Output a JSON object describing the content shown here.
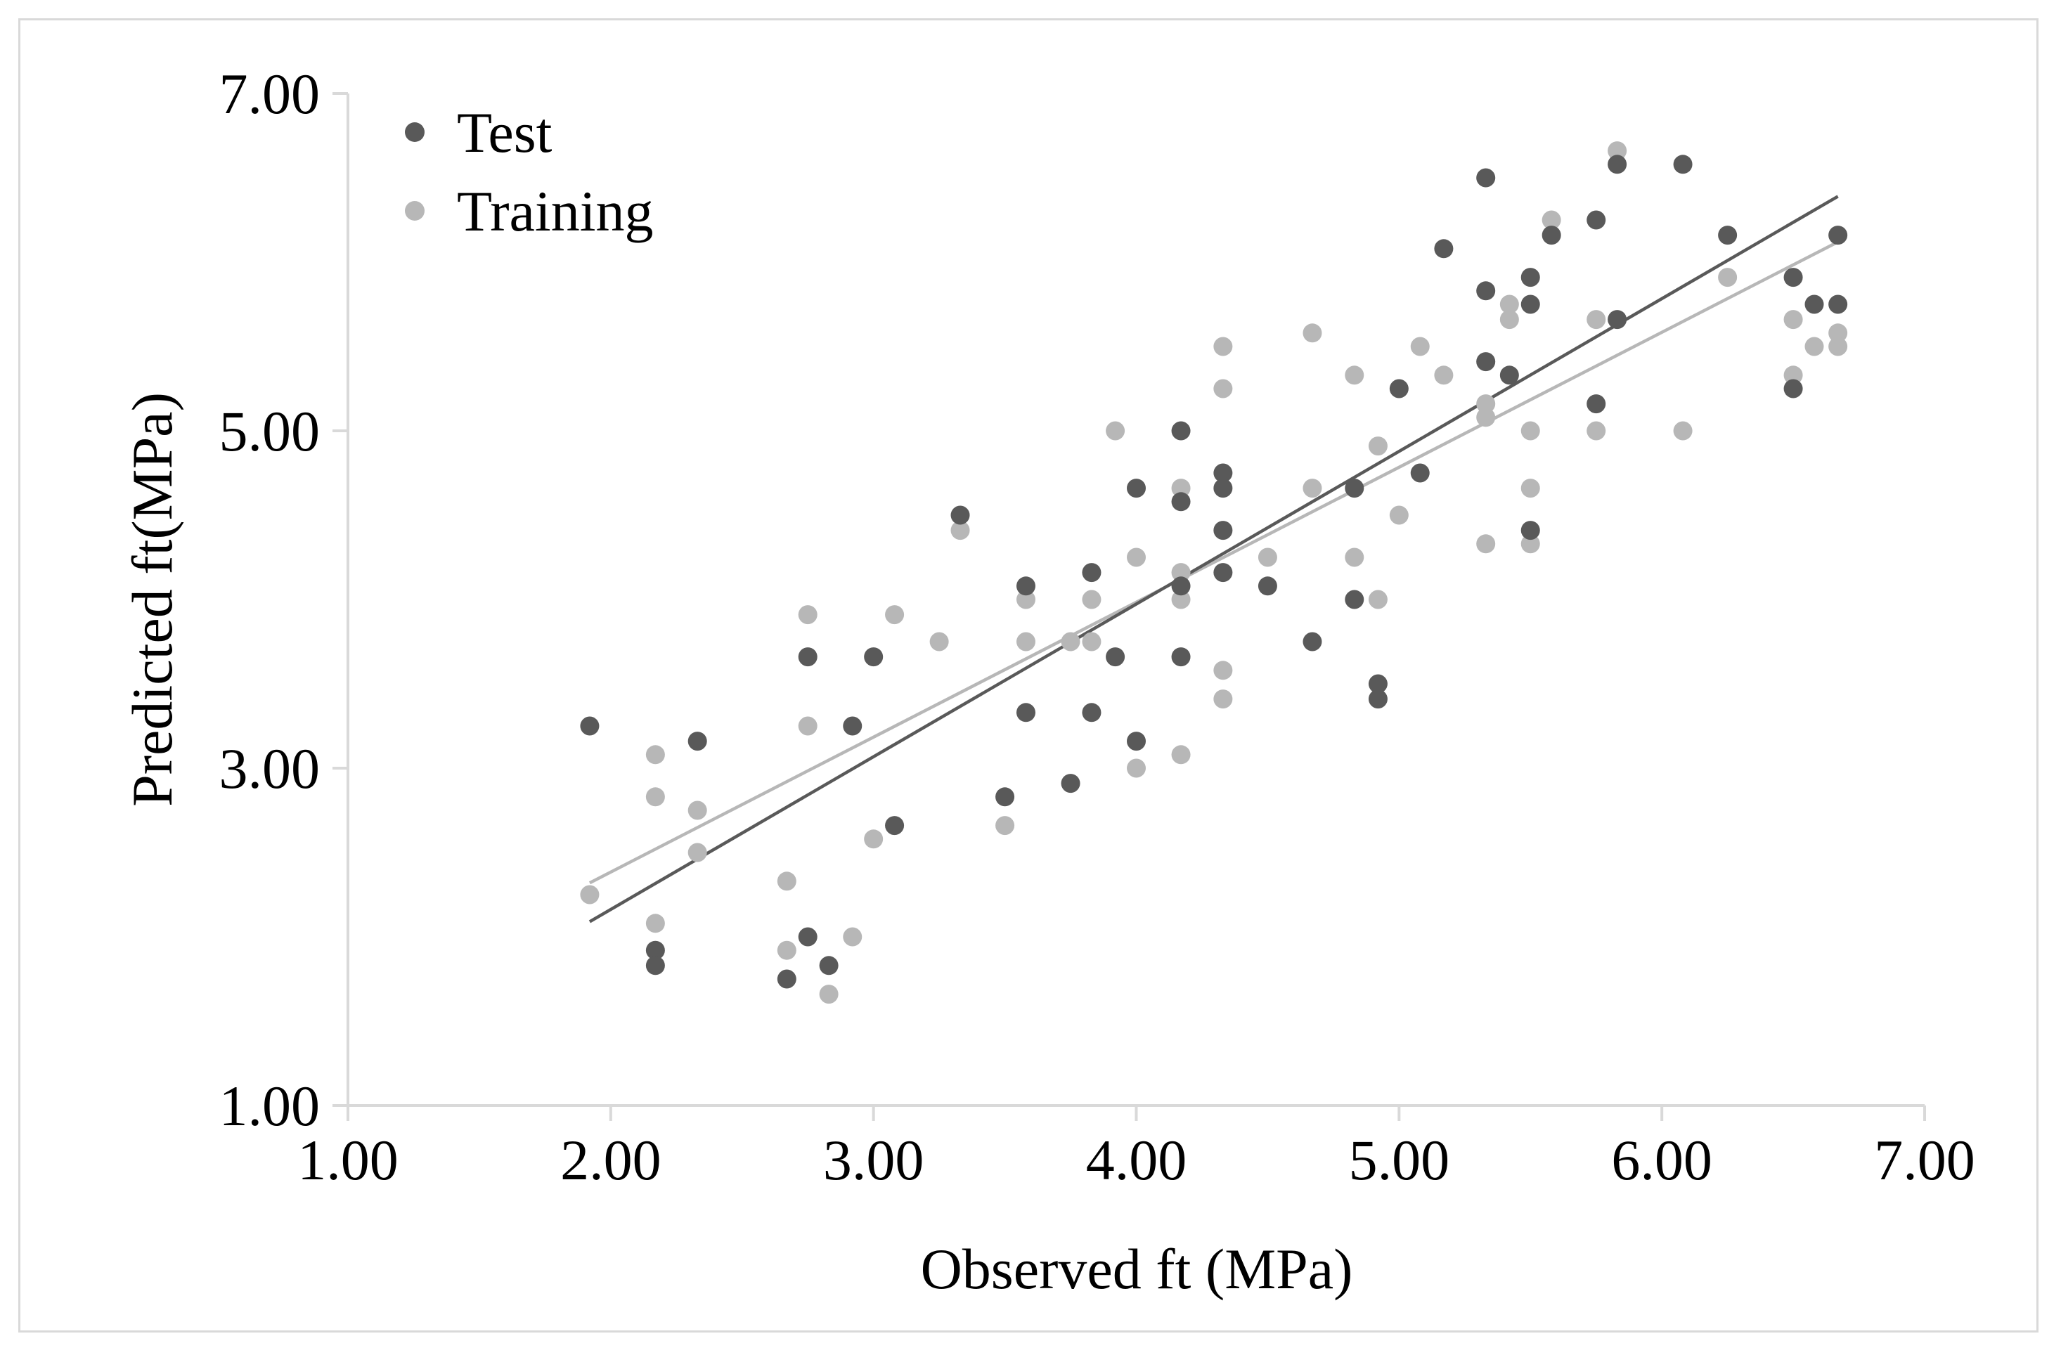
{
  "chart_data": {
    "type": "scatter",
    "title": "",
    "xlabel": "Observed ft (MPa)",
    "ylabel": "Predicted ft(MPa)",
    "xlim": [
      1.0,
      7.0
    ],
    "ylim": [
      1.0,
      7.0
    ],
    "x_ticks": [
      "1.00",
      "2.00",
      "3.00",
      "4.00",
      "5.00",
      "6.00",
      "7.00"
    ],
    "x_tick_values": [
      1,
      2,
      3,
      4,
      5,
      6,
      7
    ],
    "y_ticks": [
      "1.00",
      "3.00",
      "5.00",
      "7.00"
    ],
    "y_tick_values": [
      1,
      3,
      5,
      7
    ],
    "grid": false,
    "legend_position": "top-left",
    "series": [
      {
        "name": "Test",
        "color": "#595959",
        "points": [
          [
            1.92,
            3.25
          ],
          [
            2.17,
            1.92
          ],
          [
            2.17,
            1.83
          ],
          [
            2.33,
            3.16
          ],
          [
            2.67,
            1.75
          ],
          [
            2.75,
            2.0
          ],
          [
            2.75,
            3.66
          ],
          [
            2.83,
            1.83
          ],
          [
            2.92,
            3.25
          ],
          [
            3.0,
            3.66
          ],
          [
            3.08,
            2.66
          ],
          [
            3.33,
            4.5
          ],
          [
            3.5,
            2.83
          ],
          [
            3.58,
            4.08
          ],
          [
            3.58,
            3.33
          ],
          [
            3.75,
            2.91
          ],
          [
            3.83,
            4.16
          ],
          [
            3.83,
            3.33
          ],
          [
            3.92,
            3.66
          ],
          [
            4.0,
            4.66
          ],
          [
            4.0,
            3.16
          ],
          [
            4.17,
            5.0
          ],
          [
            4.17,
            4.58
          ],
          [
            4.17,
            4.08
          ],
          [
            4.17,
            3.66
          ],
          [
            4.33,
            4.75
          ],
          [
            4.33,
            4.66
          ],
          [
            4.33,
            4.41
          ],
          [
            4.33,
            4.16
          ],
          [
            4.5,
            4.08
          ],
          [
            4.67,
            3.75
          ],
          [
            4.83,
            4.66
          ],
          [
            4.83,
            4.0
          ],
          [
            4.92,
            3.5
          ],
          [
            4.92,
            3.41
          ],
          [
            5.0,
            5.25
          ],
          [
            5.08,
            4.75
          ],
          [
            5.17,
            6.08
          ],
          [
            5.33,
            6.5
          ],
          [
            5.33,
            5.83
          ],
          [
            5.33,
            5.41
          ],
          [
            5.42,
            5.33
          ],
          [
            5.5,
            5.91
          ],
          [
            5.5,
            5.75
          ],
          [
            5.5,
            4.41
          ],
          [
            5.58,
            6.16
          ],
          [
            5.75,
            6.25
          ],
          [
            5.75,
            5.16
          ],
          [
            5.83,
            6.58
          ],
          [
            5.83,
            5.66
          ],
          [
            6.08,
            6.58
          ],
          [
            6.25,
            6.16
          ],
          [
            6.5,
            5.91
          ],
          [
            6.5,
            5.25
          ],
          [
            6.58,
            5.75
          ],
          [
            6.67,
            6.16
          ],
          [
            6.67,
            5.75
          ]
        ],
        "trendline": [
          [
            1.92,
            2.09
          ],
          [
            6.67,
            6.39
          ]
        ]
      },
      {
        "name": "Training",
        "color": "#b7b7b7",
        "points": [
          [
            1.92,
            2.25
          ],
          [
            2.17,
            3.08
          ],
          [
            2.17,
            2.83
          ],
          [
            2.17,
            2.08
          ],
          [
            2.33,
            2.75
          ],
          [
            2.33,
            2.5
          ],
          [
            2.67,
            2.33
          ],
          [
            2.67,
            1.92
          ],
          [
            2.75,
            3.91
          ],
          [
            2.75,
            3.25
          ],
          [
            2.83,
            1.66
          ],
          [
            2.92,
            2.0
          ],
          [
            3.0,
            2.58
          ],
          [
            3.08,
            3.91
          ],
          [
            3.25,
            3.75
          ],
          [
            3.33,
            4.41
          ],
          [
            3.5,
            2.66
          ],
          [
            3.58,
            4.0
          ],
          [
            3.58,
            3.75
          ],
          [
            3.75,
            3.75
          ],
          [
            3.83,
            4.0
          ],
          [
            3.83,
            3.75
          ],
          [
            3.92,
            5.0
          ],
          [
            4.0,
            4.25
          ],
          [
            4.0,
            3.0
          ],
          [
            4.17,
            4.66
          ],
          [
            4.17,
            4.16
          ],
          [
            4.17,
            4.0
          ],
          [
            4.17,
            3.08
          ],
          [
            4.33,
            5.5
          ],
          [
            4.33,
            5.25
          ],
          [
            4.33,
            3.58
          ],
          [
            4.33,
            3.41
          ],
          [
            4.5,
            4.25
          ],
          [
            4.67,
            5.58
          ],
          [
            4.67,
            4.66
          ],
          [
            4.83,
            5.33
          ],
          [
            4.83,
            4.25
          ],
          [
            4.92,
            4.91
          ],
          [
            4.92,
            4.0
          ],
          [
            5.0,
            4.5
          ],
          [
            5.08,
            5.5
          ],
          [
            5.17,
            5.33
          ],
          [
            5.33,
            5.16
          ],
          [
            5.33,
            5.08
          ],
          [
            5.33,
            4.33
          ],
          [
            5.42,
            5.75
          ],
          [
            5.42,
            5.66
          ],
          [
            5.5,
            5.0
          ],
          [
            5.5,
            4.66
          ],
          [
            5.5,
            4.33
          ],
          [
            5.58,
            6.25
          ],
          [
            5.75,
            5.66
          ],
          [
            5.75,
            5.0
          ],
          [
            5.83,
            6.66
          ],
          [
            6.08,
            5.0
          ],
          [
            6.25,
            5.91
          ],
          [
            6.5,
            5.66
          ],
          [
            6.5,
            5.33
          ],
          [
            6.58,
            5.5
          ],
          [
            6.67,
            5.58
          ],
          [
            6.67,
            5.5
          ]
        ],
        "trendline": [
          [
            1.92,
            2.32
          ],
          [
            6.67,
            6.12
          ]
        ]
      }
    ]
  }
}
